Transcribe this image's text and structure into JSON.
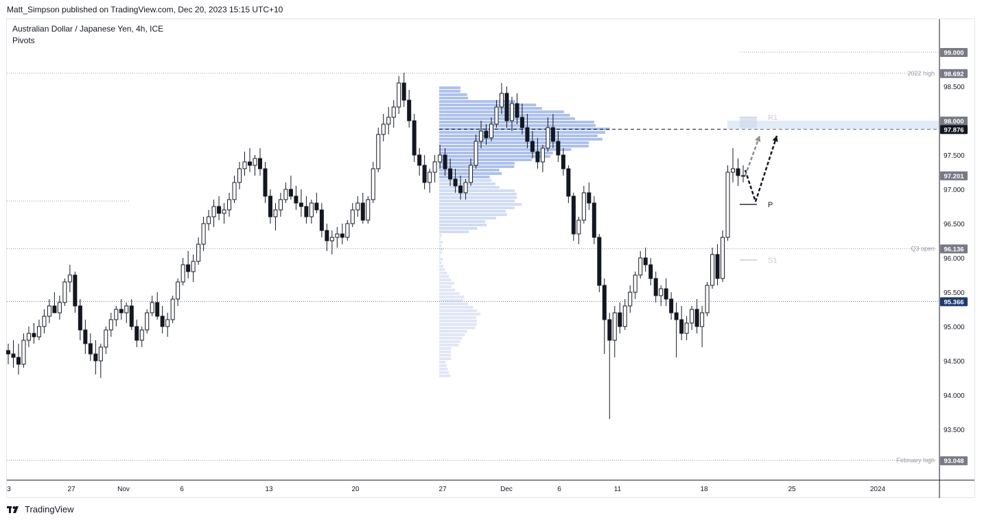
{
  "header": {
    "publisher_line": "Matt_Simpson published on TradingView.com, Dec 20, 2023 15:15 UTC+10"
  },
  "legend": {
    "symbol": "Australian Dollar / Japanese Yen, 4h, ICE",
    "indicator": "Pivots"
  },
  "footer": {
    "brand": "TradingView"
  },
  "chart_data": {
    "type": "candlestick",
    "title": "Australian Dollar / Japanese Yen, 4h, ICE",
    "y_axis": {
      "range": [
        93.0,
        99.3
      ],
      "ticks": [
        "99.000",
        "98.500",
        "98.000",
        "97.500",
        "97.000",
        "96.500",
        "96.000",
        "95.500",
        "95.000",
        "94.500",
        "94.000",
        "93.500"
      ],
      "tick_values": [
        99.0,
        98.5,
        98.0,
        97.5,
        97.0,
        96.5,
        96.0,
        95.5,
        95.0,
        94.5,
        94.0,
        93.5
      ]
    },
    "x_axis": {
      "labels": [
        "3",
        "27",
        "Nov",
        "6",
        "13",
        "20",
        "27",
        "Dec",
        "6",
        "11",
        "18",
        "25",
        "2024"
      ]
    },
    "price_tags": [
      {
        "value": "99.000",
        "kind": "gray"
      },
      {
        "value": "98.692",
        "kind": "gray"
      },
      {
        "value": "98.000",
        "kind": "gray"
      },
      {
        "value": "97.876",
        "kind": "black"
      },
      {
        "value": "97.201",
        "kind": "gray"
      },
      {
        "value": "96.136",
        "kind": "gray"
      },
      {
        "value": "95.366",
        "kind": "blue"
      },
      {
        "value": "93.048",
        "kind": "gray"
      }
    ],
    "levels": [
      {
        "label": "2022 high",
        "value": 98.692
      },
      {
        "label": "Q3 open",
        "value": 96.136
      },
      {
        "label": "February high",
        "value": 93.048
      },
      {
        "label": "",
        "value": 95.366
      },
      {
        "label": "",
        "value": 97.876
      },
      {
        "label": "",
        "value": 99.0
      }
    ],
    "pivots": [
      {
        "label": "R1",
        "value": 98.05
      },
      {
        "label": "P",
        "value": 96.78
      },
      {
        "label": "S1",
        "value": 95.97
      }
    ],
    "candles_ohlc": [
      [
        94.65,
        94.75,
        94.45,
        94.6
      ],
      [
        94.6,
        94.8,
        94.4,
        94.55
      ],
      [
        94.55,
        94.75,
        94.3,
        94.45
      ],
      [
        94.45,
        94.9,
        94.4,
        94.8
      ],
      [
        94.8,
        95.0,
        94.7,
        94.9
      ],
      [
        94.9,
        95.05,
        94.75,
        94.85
      ],
      [
        94.85,
        95.1,
        94.8,
        95.0
      ],
      [
        95.0,
        95.25,
        94.9,
        95.15
      ],
      [
        95.15,
        95.4,
        95.05,
        95.3
      ],
      [
        95.3,
        95.5,
        95.2,
        95.2
      ],
      [
        95.2,
        95.45,
        95.1,
        95.35
      ],
      [
        95.35,
        95.7,
        95.3,
        95.65
      ],
      [
        95.65,
        95.9,
        95.5,
        95.75
      ],
      [
        95.75,
        95.8,
        95.2,
        95.3
      ],
      [
        95.3,
        95.4,
        94.8,
        94.95
      ],
      [
        94.95,
        95.1,
        94.6,
        94.75
      ],
      [
        94.75,
        94.9,
        94.5,
        94.6
      ],
      [
        94.6,
        94.8,
        94.3,
        94.5
      ],
      [
        94.5,
        94.75,
        94.25,
        94.7
      ],
      [
        94.7,
        95.0,
        94.6,
        94.95
      ],
      [
        94.95,
        95.2,
        94.85,
        95.1
      ],
      [
        95.1,
        95.3,
        95.0,
        95.25
      ],
      [
        95.25,
        95.4,
        95.1,
        95.2
      ],
      [
        95.2,
        95.35,
        95.05,
        95.3
      ],
      [
        95.3,
        95.4,
        94.95,
        95.0
      ],
      [
        95.0,
        95.1,
        94.7,
        94.8
      ],
      [
        94.8,
        95.0,
        94.7,
        94.95
      ],
      [
        94.95,
        95.25,
        94.9,
        95.2
      ],
      [
        95.2,
        95.45,
        95.15,
        95.35
      ],
      [
        95.35,
        95.5,
        95.1,
        95.15
      ],
      [
        95.15,
        95.3,
        94.9,
        95.0
      ],
      [
        95.0,
        95.2,
        94.85,
        95.1
      ],
      [
        95.1,
        95.45,
        95.05,
        95.4
      ],
      [
        95.4,
        95.7,
        95.3,
        95.65
      ],
      [
        95.65,
        96.0,
        95.6,
        95.9
      ],
      [
        95.9,
        96.1,
        95.7,
        95.8
      ],
      [
        95.8,
        96.05,
        95.65,
        95.95
      ],
      [
        95.95,
        96.3,
        95.9,
        96.2
      ],
      [
        96.2,
        96.6,
        96.1,
        96.5
      ],
      [
        96.5,
        96.7,
        96.4,
        96.6
      ],
      [
        96.6,
        96.85,
        96.45,
        96.75
      ],
      [
        96.75,
        96.9,
        96.55,
        96.65
      ],
      [
        96.65,
        96.8,
        96.5,
        96.7
      ],
      [
        96.7,
        96.95,
        96.6,
        96.85
      ],
      [
        96.85,
        97.2,
        96.8,
        97.1
      ],
      [
        97.1,
        97.4,
        97.0,
        97.3
      ],
      [
        97.3,
        97.55,
        97.2,
        97.4
      ],
      [
        97.4,
        97.6,
        97.25,
        97.35
      ],
      [
        97.35,
        97.5,
        97.2,
        97.45
      ],
      [
        97.45,
        97.6,
        97.2,
        97.3
      ],
      [
        97.3,
        97.4,
        96.8,
        96.9
      ],
      [
        96.9,
        97.0,
        96.5,
        96.6
      ],
      [
        96.6,
        96.8,
        96.4,
        96.7
      ],
      [
        96.7,
        96.95,
        96.6,
        96.85
      ],
      [
        96.85,
        97.1,
        96.8,
        97.0
      ],
      [
        97.0,
        97.2,
        96.85,
        96.9
      ],
      [
        96.9,
        97.05,
        96.7,
        96.8
      ],
      [
        96.8,
        97.0,
        96.6,
        96.75
      ],
      [
        96.75,
        96.9,
        96.5,
        96.6
      ],
      [
        96.6,
        96.85,
        96.5,
        96.8
      ],
      [
        96.8,
        96.95,
        96.65,
        96.7
      ],
      [
        96.7,
        96.8,
        96.3,
        96.4
      ],
      [
        96.4,
        96.5,
        96.1,
        96.25
      ],
      [
        96.25,
        96.4,
        96.05,
        96.3
      ],
      [
        96.3,
        96.45,
        96.15,
        96.35
      ],
      [
        96.35,
        96.5,
        96.2,
        96.3
      ],
      [
        96.3,
        96.55,
        96.25,
        96.5
      ],
      [
        96.5,
        96.8,
        96.45,
        96.7
      ],
      [
        96.7,
        96.9,
        96.6,
        96.8
      ],
      [
        96.8,
        96.95,
        96.5,
        96.55
      ],
      [
        96.55,
        96.9,
        96.5,
        96.85
      ],
      [
        96.85,
        97.4,
        96.8,
        97.3
      ],
      [
        97.3,
        97.9,
        97.25,
        97.8
      ],
      [
        97.8,
        98.1,
        97.7,
        97.95
      ],
      [
        97.95,
        98.2,
        97.8,
        98.05
      ],
      [
        98.05,
        98.3,
        97.9,
        98.2
      ],
      [
        98.2,
        98.65,
        98.1,
        98.55
      ],
      [
        98.55,
        98.7,
        98.2,
        98.3
      ],
      [
        98.3,
        98.45,
        97.9,
        98.0
      ],
      [
        98.0,
        98.1,
        97.4,
        97.5
      ],
      [
        97.5,
        97.6,
        97.2,
        97.35
      ],
      [
        97.35,
        97.5,
        97.0,
        97.1
      ],
      [
        97.1,
        97.3,
        96.95,
        97.25
      ],
      [
        97.25,
        97.5,
        97.1,
        97.4
      ],
      [
        97.4,
        97.65,
        97.3,
        97.5
      ],
      [
        97.5,
        97.6,
        97.2,
        97.3
      ],
      [
        97.3,
        97.45,
        97.05,
        97.15
      ],
      [
        97.15,
        97.3,
        96.95,
        97.05
      ],
      [
        97.05,
        97.2,
        96.85,
        96.95
      ],
      [
        96.95,
        97.15,
        96.85,
        97.1
      ],
      [
        97.1,
        97.45,
        97.05,
        97.35
      ],
      [
        97.35,
        97.8,
        97.3,
        97.7
      ],
      [
        97.7,
        98.0,
        97.6,
        97.85
      ],
      [
        97.85,
        97.95,
        97.65,
        97.75
      ],
      [
        97.75,
        98.05,
        97.7,
        97.95
      ],
      [
        97.95,
        98.3,
        97.9,
        98.2
      ],
      [
        98.2,
        98.55,
        98.1,
        98.4
      ],
      [
        98.4,
        98.5,
        97.9,
        98.0
      ],
      [
        98.0,
        98.35,
        97.85,
        98.25
      ],
      [
        98.25,
        98.4,
        97.95,
        98.05
      ],
      [
        98.05,
        98.25,
        97.8,
        97.9
      ],
      [
        97.9,
        98.1,
        97.6,
        97.7
      ],
      [
        97.7,
        97.85,
        97.45,
        97.55
      ],
      [
        97.55,
        97.75,
        97.3,
        97.4
      ],
      [
        97.4,
        97.65,
        97.25,
        97.6
      ],
      [
        97.6,
        98.05,
        97.55,
        97.9
      ],
      [
        97.9,
        98.1,
        97.6,
        97.7
      ],
      [
        97.7,
        97.85,
        97.4,
        97.5
      ],
      [
        97.5,
        97.6,
        97.2,
        97.3
      ],
      [
        97.3,
        97.35,
        96.8,
        96.9
      ],
      [
        96.9,
        96.95,
        96.25,
        96.35
      ],
      [
        96.35,
        96.6,
        96.2,
        96.55
      ],
      [
        96.55,
        97.05,
        96.5,
        96.95
      ],
      [
        96.95,
        97.1,
        96.7,
        96.8
      ],
      [
        96.8,
        96.9,
        96.2,
        96.3
      ],
      [
        96.3,
        96.35,
        95.5,
        95.6
      ],
      [
        95.6,
        95.7,
        94.6,
        95.1
      ],
      [
        95.1,
        95.2,
        93.65,
        94.8
      ],
      [
        94.8,
        95.3,
        94.55,
        95.2
      ],
      [
        95.2,
        95.35,
        94.9,
        95.0
      ],
      [
        95.0,
        95.4,
        94.95,
        95.3
      ],
      [
        95.3,
        95.6,
        95.2,
        95.5
      ],
      [
        95.5,
        95.8,
        95.4,
        95.75
      ],
      [
        95.75,
        96.1,
        95.7,
        96.0
      ],
      [
        96.0,
        96.15,
        95.8,
        95.9
      ],
      [
        95.9,
        96.0,
        95.6,
        95.7
      ],
      [
        95.7,
        95.8,
        95.35,
        95.45
      ],
      [
        95.45,
        95.6,
        95.3,
        95.55
      ],
      [
        95.55,
        95.7,
        95.3,
        95.4
      ],
      [
        95.4,
        95.5,
        95.1,
        95.2
      ],
      [
        95.2,
        95.35,
        94.55,
        95.1
      ],
      [
        95.1,
        95.3,
        94.8,
        94.9
      ],
      [
        94.9,
        95.15,
        94.8,
        95.05
      ],
      [
        95.05,
        95.3,
        94.95,
        95.25
      ],
      [
        95.25,
        95.4,
        94.9,
        95.0
      ],
      [
        95.0,
        95.3,
        94.7,
        95.2
      ],
      [
        95.2,
        95.65,
        95.15,
        95.6
      ],
      [
        95.6,
        96.15,
        95.55,
        96.05
      ],
      [
        96.05,
        96.2,
        95.6,
        95.7
      ],
      [
        95.7,
        96.4,
        95.65,
        96.3
      ],
      [
        96.3,
        97.35,
        96.25,
        97.25
      ],
      [
        97.25,
        97.6,
        97.1,
        97.3
      ],
      [
        97.3,
        97.45,
        97.05,
        97.2
      ],
      [
        97.2,
        97.35,
        97.1,
        97.2
      ]
    ],
    "volume_profile_note": "Volume profile histogram spanning ~98.5 to ~94.3"
  }
}
